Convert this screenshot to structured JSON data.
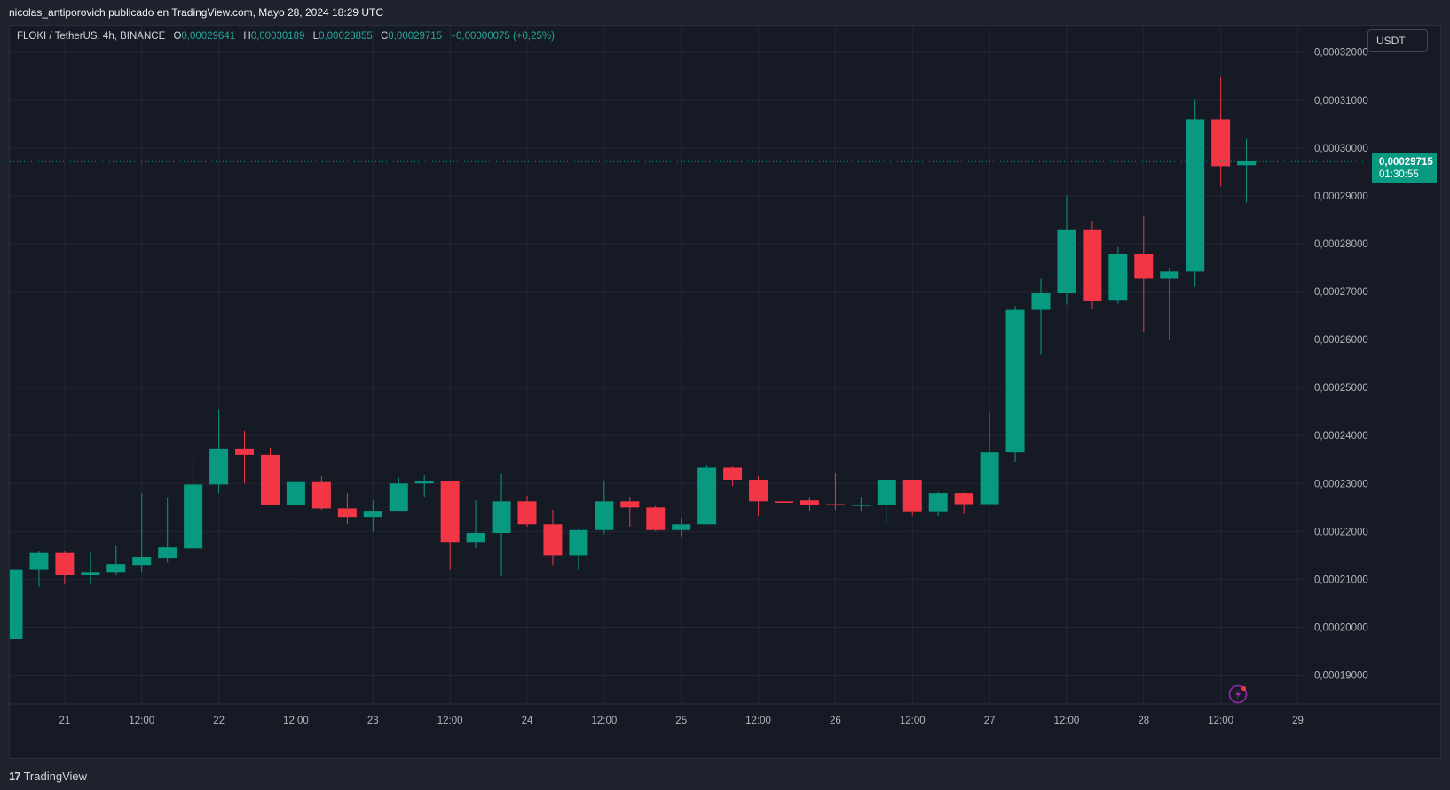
{
  "header": {
    "publish_line": "nicolas_antiporovich publicado en TradingView.com, Mayo 28, 2024 18:29 UTC"
  },
  "legend": {
    "symbol": "FLOKI / TetherUS, 4h, BINANCE",
    "o_label": "O",
    "o_value": "0,00029641",
    "h_label": "H",
    "h_value": "0,00030189",
    "l_label": "L",
    "l_value": "0,00028855",
    "c_label": "C",
    "c_value": "0,00029715",
    "change": "+0,00000075 (+0,25%)"
  },
  "currency_button": "USDT",
  "last_price": {
    "price": "0,00029715",
    "countdown": "01:30:55"
  },
  "footer": {
    "logo_mark": "17",
    "logo_text": "TradingView"
  },
  "colors": {
    "up": "#089981",
    "down": "#f23645",
    "background": "#161a25",
    "grid": "#232734",
    "axis_text": "#b2b5be",
    "alert_icon": "#9c27b0"
  },
  "icons": [
    "lightning-alert-icon",
    "tradingview-logo-icon"
  ],
  "chart_data": {
    "type": "candlestick",
    "title": "FLOKI / TetherUS, 4h, BINANCE",
    "ylim": [
      0.000184,
      0.0003255
    ],
    "y_ticks": [
      {
        "value": 0.00032,
        "label": "0,00032000"
      },
      {
        "value": 0.00031,
        "label": "0,00031000"
      },
      {
        "value": 0.0003,
        "label": "0,00030000"
      },
      {
        "value": 0.00029,
        "label": "0,00029000"
      },
      {
        "value": 0.00028,
        "label": "0,00028000"
      },
      {
        "value": 0.00027,
        "label": "0,00027000"
      },
      {
        "value": 0.00026,
        "label": "0,00026000"
      },
      {
        "value": 0.00025,
        "label": "0,00025000"
      },
      {
        "value": 0.00024,
        "label": "0,00024000"
      },
      {
        "value": 0.00023,
        "label": "0,00023000"
      },
      {
        "value": 0.00022,
        "label": "0,00022000"
      },
      {
        "value": 0.00021,
        "label": "0,00021000"
      },
      {
        "value": 0.0002,
        "label": "0,00020000"
      },
      {
        "value": 0.00019,
        "label": "0,00019000"
      }
    ],
    "x_ticks": [
      {
        "index": 2,
        "label": "21"
      },
      {
        "index": 5,
        "label": "12:00"
      },
      {
        "index": 8,
        "label": "22"
      },
      {
        "index": 11,
        "label": "12:00"
      },
      {
        "index": 14,
        "label": "23"
      },
      {
        "index": 17,
        "label": "12:00"
      },
      {
        "index": 20,
        "label": "24"
      },
      {
        "index": 23,
        "label": "12:00"
      },
      {
        "index": 26,
        "label": "25"
      },
      {
        "index": 29,
        "label": "12:00"
      },
      {
        "index": 32,
        "label": "26"
      },
      {
        "index": 35,
        "label": "12:00"
      },
      {
        "index": 38,
        "label": "27"
      },
      {
        "index": 41,
        "label": "12:00"
      },
      {
        "index": 44,
        "label": "28"
      },
      {
        "index": 47,
        "label": "12:00"
      },
      {
        "index": 50,
        "label": "29"
      }
    ],
    "last_price": 0.00029715,
    "candles": [
      {
        "o": 0.0001975,
        "h": 0.000212,
        "l": 0.0001975,
        "c": 0.000212
      },
      {
        "o": 0.000212,
        "h": 0.000216,
        "l": 0.0002085,
        "c": 0.0002155
      },
      {
        "o": 0.0002155,
        "h": 0.000216,
        "l": 0.000209,
        "c": 0.000211
      },
      {
        "o": 0.000211,
        "h": 0.0002155,
        "l": 0.000209,
        "c": 0.0002115
      },
      {
        "o": 0.0002115,
        "h": 0.000217,
        "l": 0.000211,
        "c": 0.0002132
      },
      {
        "o": 0.000213,
        "h": 0.000228,
        "l": 0.0002115,
        "c": 0.0002147
      },
      {
        "o": 0.0002145,
        "h": 0.000227,
        "l": 0.0002135,
        "c": 0.0002167
      },
      {
        "o": 0.0002165,
        "h": 0.000235,
        "l": 0.0002165,
        "c": 0.0002298
      },
      {
        "o": 0.0002298,
        "h": 0.0002455,
        "l": 0.000228,
        "c": 0.0002373
      },
      {
        "o": 0.0002373,
        "h": 0.000241,
        "l": 0.00023,
        "c": 0.000236
      },
      {
        "o": 0.000236,
        "h": 0.0002375,
        "l": 0.0002255,
        "c": 0.0002255
      },
      {
        "o": 0.0002255,
        "h": 0.000234,
        "l": 0.000217,
        "c": 0.0002303
      },
      {
        "o": 0.0002303,
        "h": 0.0002315,
        "l": 0.0002245,
        "c": 0.0002248
      },
      {
        "o": 0.0002248,
        "h": 0.000228,
        "l": 0.0002215,
        "c": 0.000223
      },
      {
        "o": 0.000223,
        "h": 0.0002265,
        "l": 0.00022,
        "c": 0.0002243
      },
      {
        "o": 0.0002243,
        "h": 0.0002312,
        "l": 0.0002243,
        "c": 0.00023
      },
      {
        "o": 0.00023,
        "h": 0.0002317,
        "l": 0.0002272,
        "c": 0.0002306
      },
      {
        "o": 0.0002306,
        "h": 0.0002306,
        "l": 0.000212,
        "c": 0.0002178
      },
      {
        "o": 0.0002178,
        "h": 0.0002265,
        "l": 0.0002165,
        "c": 0.0002197
      },
      {
        "o": 0.0002197,
        "h": 0.000232,
        "l": 0.0002107,
        "c": 0.0002263
      },
      {
        "o": 0.0002263,
        "h": 0.0002275,
        "l": 0.000221,
        "c": 0.0002215
      },
      {
        "o": 0.0002215,
        "h": 0.0002245,
        "l": 0.000213,
        "c": 0.000215
      },
      {
        "o": 0.000215,
        "h": 0.0002205,
        "l": 0.000212,
        "c": 0.0002203
      },
      {
        "o": 0.0002203,
        "h": 0.0002305,
        "l": 0.0002195,
        "c": 0.0002263
      },
      {
        "o": 0.0002263,
        "h": 0.0002272,
        "l": 0.000221,
        "c": 0.000225
      },
      {
        "o": 0.000225,
        "h": 0.0002253,
        "l": 0.00022,
        "c": 0.0002203
      },
      {
        "o": 0.0002203,
        "h": 0.0002228,
        "l": 0.0002188,
        "c": 0.0002215
      },
      {
        "o": 0.0002215,
        "h": 0.0002338,
        "l": 0.0002215,
        "c": 0.0002333
      },
      {
        "o": 0.0002333,
        "h": 0.0002335,
        "l": 0.0002295,
        "c": 0.0002308
      },
      {
        "o": 0.0002308,
        "h": 0.0002315,
        "l": 0.0002233,
        "c": 0.0002263
      },
      {
        "o": 0.0002263,
        "h": 0.0002297,
        "l": 0.0002258,
        "c": 0.000226
      },
      {
        "o": 0.0002265,
        "h": 0.000227,
        "l": 0.0002243,
        "c": 0.0002255
      },
      {
        "o": 0.0002257,
        "h": 0.0002322,
        "l": 0.0002245,
        "c": 0.0002255
      },
      {
        "o": 0.0002255,
        "h": 0.0002272,
        "l": 0.0002243,
        "c": 0.0002256
      },
      {
        "o": 0.0002256,
        "h": 0.000231,
        "l": 0.0002217,
        "c": 0.0002308
      },
      {
        "o": 0.0002308,
        "h": 0.0002308,
        "l": 0.0002233,
        "c": 0.0002242
      },
      {
        "o": 0.0002242,
        "h": 0.0002282,
        "l": 0.0002232,
        "c": 0.000228
      },
      {
        "o": 0.000228,
        "h": 0.0002281,
        "l": 0.0002236,
        "c": 0.0002257
      },
      {
        "o": 0.0002257,
        "h": 0.0002448,
        "l": 0.0002257,
        "c": 0.0002365
      },
      {
        "o": 0.0002365,
        "h": 0.000267,
        "l": 0.0002345,
        "c": 0.0002662
      },
      {
        "o": 0.0002662,
        "h": 0.0002727,
        "l": 0.000257,
        "c": 0.0002697
      },
      {
        "o": 0.0002697,
        "h": 0.00029,
        "l": 0.0002673,
        "c": 0.000283
      },
      {
        "o": 0.000283,
        "h": 0.0002848,
        "l": 0.0002665,
        "c": 0.000268
      },
      {
        "o": 0.0002683,
        "h": 0.0002793,
        "l": 0.0002675,
        "c": 0.0002778
      },
      {
        "o": 0.0002778,
        "h": 0.0002857,
        "l": 0.0002615,
        "c": 0.0002727
      },
      {
        "o": 0.0002727,
        "h": 0.000275,
        "l": 0.00026,
        "c": 0.0002742
      },
      {
        "o": 0.0002742,
        "h": 0.00031,
        "l": 0.000271,
        "c": 0.000306
      },
      {
        "o": 0.000306,
        "h": 0.0003148,
        "l": 0.000292,
        "c": 0.0002962
      },
      {
        "o": 0.0002964,
        "h": 0.0003019,
        "l": 0.0002886,
        "c": 0.0002972
      }
    ]
  }
}
